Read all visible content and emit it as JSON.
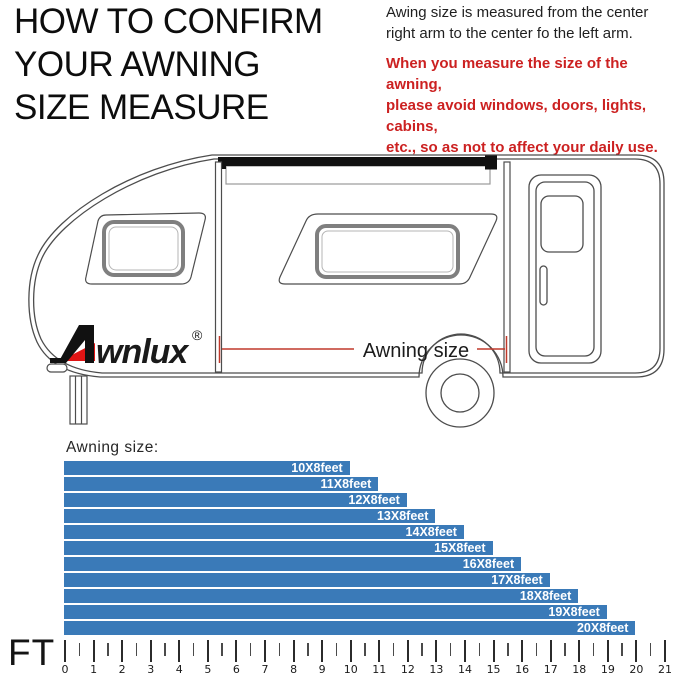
{
  "header": {
    "title_lines": [
      "HOW TO CONFIRM",
      "YOUR AWNING",
      "SIZE MEASURE"
    ],
    "note_black_lines": [
      "Awing size is measured from the center",
      "right arm to the center fo the left arm."
    ],
    "note_red_lines": [
      "When you measure the size of the awning,",
      "please avoid windows, doors, lights, cabins,",
      "etc., so as not to affect your daily use."
    ],
    "note_red_color": "#cc2121"
  },
  "diagram": {
    "dimension_label": "Awning size",
    "dimension_line_color": "#c0392b",
    "line_color": "#4d4d4d",
    "logo": {
      "text": "wnlux",
      "registered_mark": "®",
      "red": "#e01414",
      "black": "#111111"
    }
  },
  "chart_data": {
    "type": "bar",
    "orientation": "horizontal",
    "title": "Awning size:",
    "categories": [
      "10X8feet",
      "11X8feet",
      "12X8feet",
      "13X8feet",
      "14X8feet",
      "15X8feet",
      "16X8feet",
      "17X8feet",
      "18X8feet",
      "19X8feet",
      "20X8feet"
    ],
    "values": [
      10,
      11,
      12,
      13,
      14,
      15,
      16,
      17,
      18,
      19,
      20
    ],
    "unit": "feet",
    "xlabel": "FT",
    "xlim": [
      0,
      21
    ],
    "x_tick_interval": 1,
    "x_minor_tick_interval": 0.5,
    "grid": false,
    "legend": false,
    "bar_color": "#3a7ab8",
    "bar_label_color": "#ffffff"
  }
}
